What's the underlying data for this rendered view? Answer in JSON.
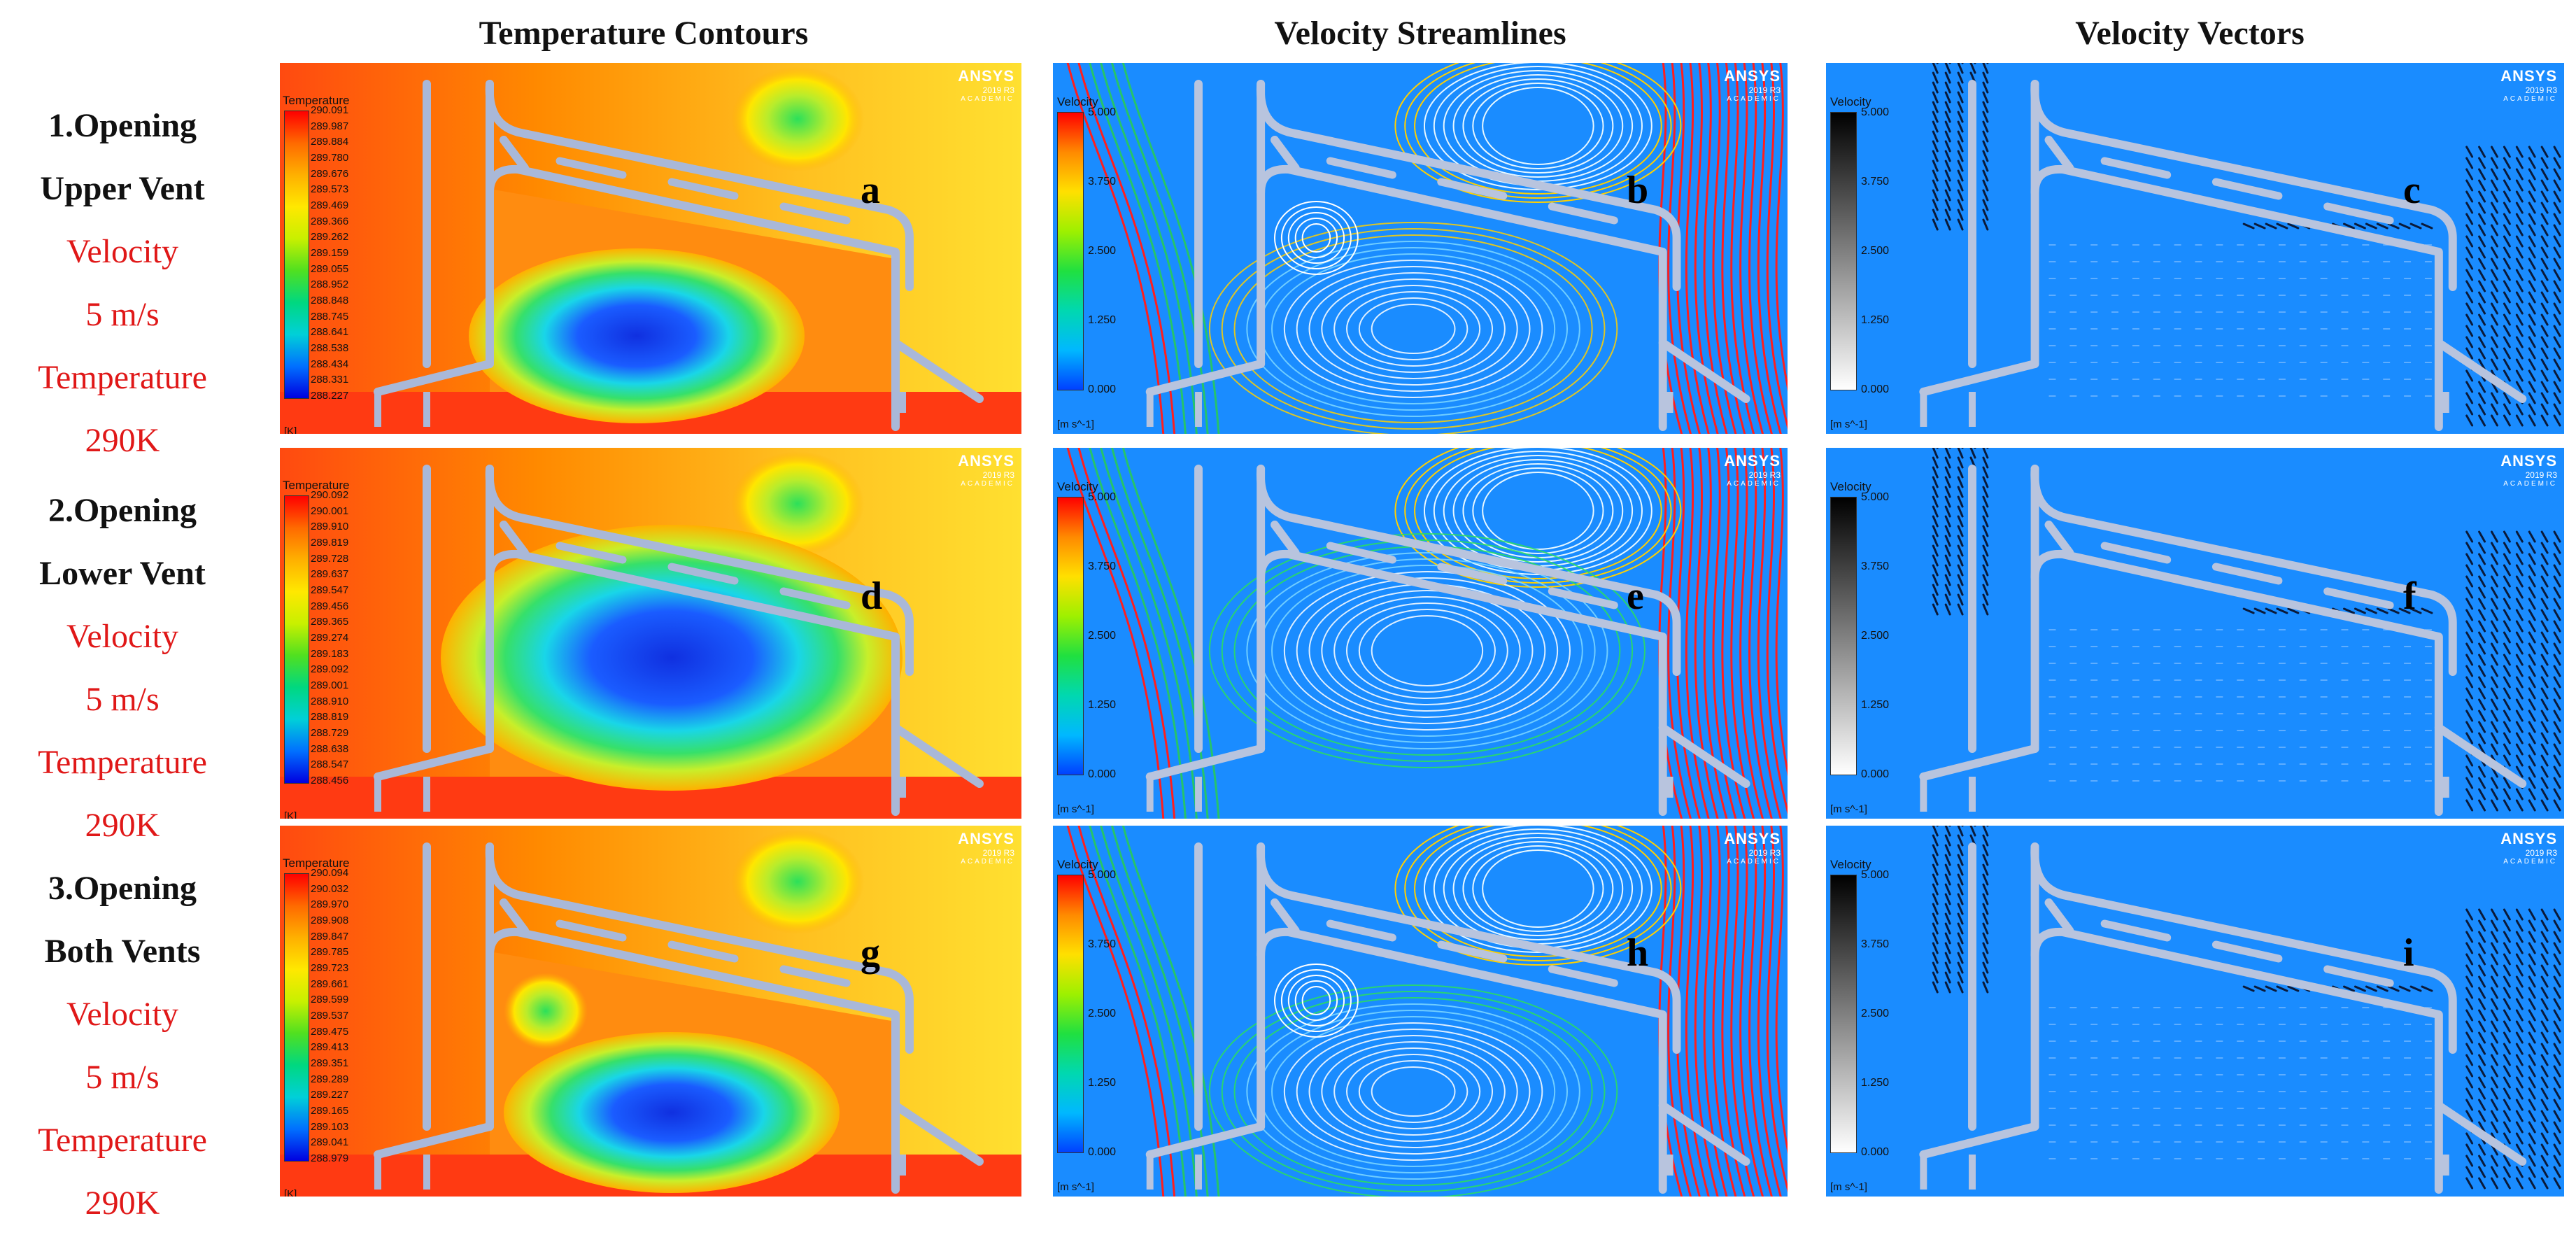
{
  "columns": [
    "Temperature Contours",
    "Velocity Streamlines",
    "Velocity Vectors"
  ],
  "rows": [
    {
      "title1": "1.Opening",
      "title2": "Upper Vent",
      "l1": "Velocity",
      "l2": "5 m/s",
      "l3": "Temperature",
      "l4": "290K",
      "temp_ticks": [
        "290.091",
        "289.987",
        "289.884",
        "289.780",
        "289.676",
        "289.573",
        "289.469",
        "289.366",
        "289.262",
        "289.159",
        "289.055",
        "288.952",
        "288.848",
        "288.745",
        "288.641",
        "288.538",
        "288.434",
        "288.331",
        "288.227"
      ],
      "letters": [
        "a",
        "b",
        "c"
      ]
    },
    {
      "title1": "2.Opening",
      "title2": "Lower Vent",
      "l1": "Velocity",
      "l2": "5 m/s",
      "l3": "Temperature",
      "l4": "290K",
      "temp_ticks": [
        "290.092",
        "290.001",
        "289.910",
        "289.819",
        "289.728",
        "289.637",
        "289.547",
        "289.456",
        "289.365",
        "289.274",
        "289.183",
        "289.092",
        "289.001",
        "288.910",
        "288.819",
        "288.729",
        "288.638",
        "288.547",
        "288.456"
      ],
      "letters": [
        "d",
        "e",
        "f"
      ]
    },
    {
      "title1": "3.Opening",
      "title2": "Both Vents",
      "l1": "Velocity",
      "l2": "5 m/s",
      "l3": "Temperature",
      "l4": "290K",
      "temp_ticks": [
        "290.094",
        "290.032",
        "289.970",
        "289.908",
        "289.847",
        "289.785",
        "289.723",
        "289.661",
        "289.599",
        "289.537",
        "289.475",
        "289.413",
        "289.351",
        "289.289",
        "289.227",
        "289.165",
        "289.103",
        "289.041",
        "288.979"
      ],
      "letters": [
        "g",
        "h",
        "i"
      ]
    }
  ],
  "legend": {
    "temp_title": "Temperature",
    "temp_unit": "[K]",
    "vel_title": "Velocity",
    "vel_unit": "[m s^-1]",
    "vel_ticks": [
      "5.000",
      "3.750",
      "2.500",
      "1.250",
      "0.000"
    ]
  },
  "ansys": {
    "name": "ANSYS",
    "version": "2019 R3",
    "edition": "ACADEMIC"
  },
  "colors": {
    "background_blue": "#1a8cff",
    "temp_hot": "#ff3a10",
    "streamline_red": "#ff1e1e",
    "label_red": "#e01818"
  }
}
